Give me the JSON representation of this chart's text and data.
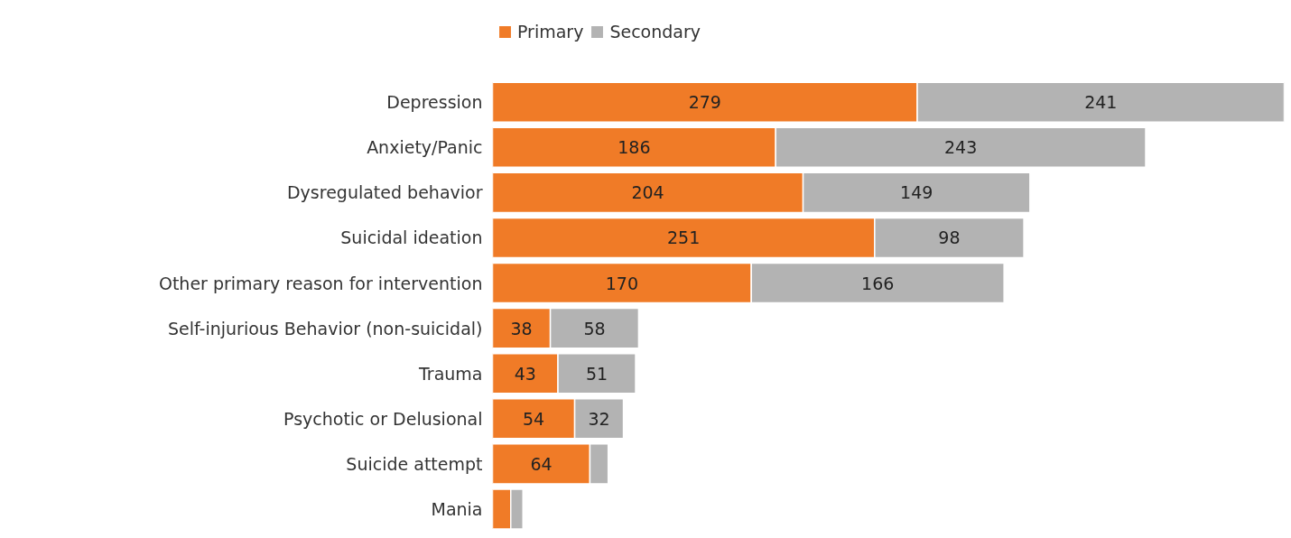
{
  "chart_data": {
    "type": "bar",
    "orientation": "horizontal",
    "stacked": true,
    "grid": false,
    "legend": "top",
    "tick_labels": "y",
    "categories": [
      "Depression",
      "Anxiety/Panic",
      "Dysregulated behavior",
      "Suicidal ideation",
      "Other primary reason for intervention",
      "Self-injurious Behavior (non-suicidal)",
      "Trauma",
      "Psychotic or Delusional",
      "Suicide attempt",
      "Mania"
    ],
    "series": [
      {
        "name": "Primary",
        "color": "#f07b27",
        "values": [
          279,
          186,
          204,
          251,
          170,
          38,
          43,
          54,
          64,
          12
        ],
        "value_labels": [
          "279",
          "186",
          "204",
          "251",
          "170",
          "38",
          "43",
          "54",
          "64",
          null
        ]
      },
      {
        "name": "Secondary",
        "color": "#b3b3b3",
        "values": [
          241,
          243,
          149,
          98,
          166,
          58,
          51,
          32,
          12,
          8
        ],
        "value_labels": [
          "241",
          "243",
          "149",
          "98",
          "166",
          "58",
          "51",
          "32",
          null,
          null
        ]
      }
    ]
  }
}
